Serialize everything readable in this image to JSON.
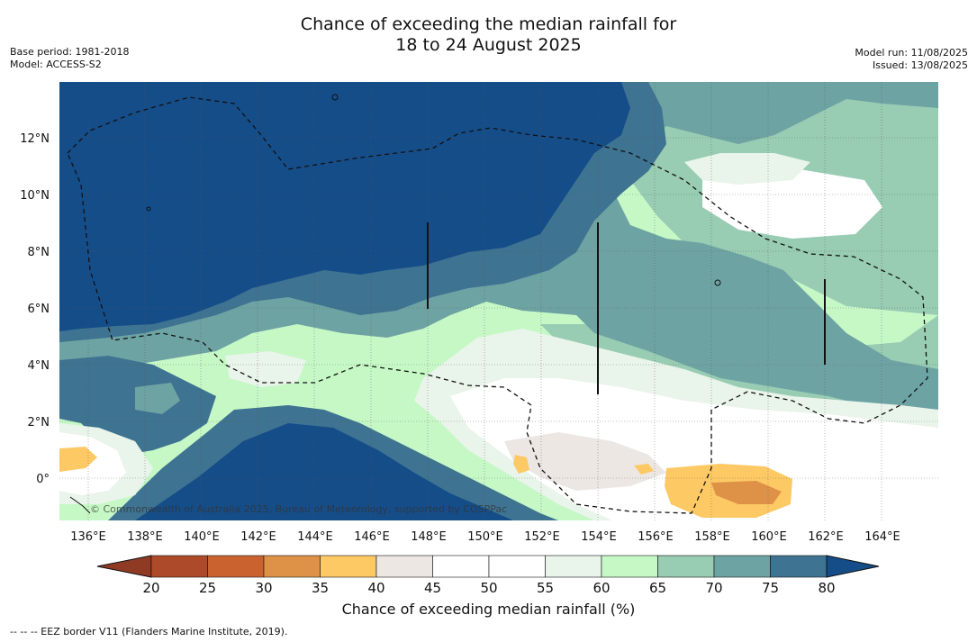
{
  "title": {
    "line1": "Chance of exceeding the median rainfall for",
    "line2": "18 to 24 August 2025"
  },
  "meta": {
    "base_period": "Base period: 1981-2018",
    "model": "Model: ACCESS-S2",
    "model_run": "Model run: 11/08/2025",
    "issued": "Issued: 13/08/2025"
  },
  "map": {
    "lon_labels": [
      "136°E",
      "138°E",
      "140°E",
      "142°E",
      "144°E",
      "146°E",
      "148°E",
      "150°E",
      "152°E",
      "154°E",
      "156°E",
      "158°E",
      "160°E",
      "162°E",
      "164°E"
    ],
    "lat_labels": [
      "12°N",
      "10°N",
      "8°N",
      "6°N",
      "4°N",
      "2°N",
      "0°"
    ],
    "watermark": "© Commonwealth of Australia 2025, Bureau of Meteorology, supported by COSPPac",
    "grid": "dotted"
  },
  "colorbar": {
    "ticks": [
      "20",
      "25",
      "30",
      "35",
      "40",
      "45",
      "50",
      "55",
      "60",
      "65",
      "70",
      "75",
      "80"
    ],
    "colors": [
      "#ad4a2a",
      "#c9622f",
      "#de9248",
      "#fdc965",
      "#ede7e4",
      "#ffffff",
      "#ffffff",
      "#e9f4ea",
      "#c6f8c6",
      "#98ccb3",
      "#6ea3a3",
      "#3e7391",
      "#154d89"
    ],
    "label": "Chance of exceeding median rainfall (%)"
  },
  "footer": "--  --  -- EEZ border V11 (Flanders Marine Institute, 2019)."
}
